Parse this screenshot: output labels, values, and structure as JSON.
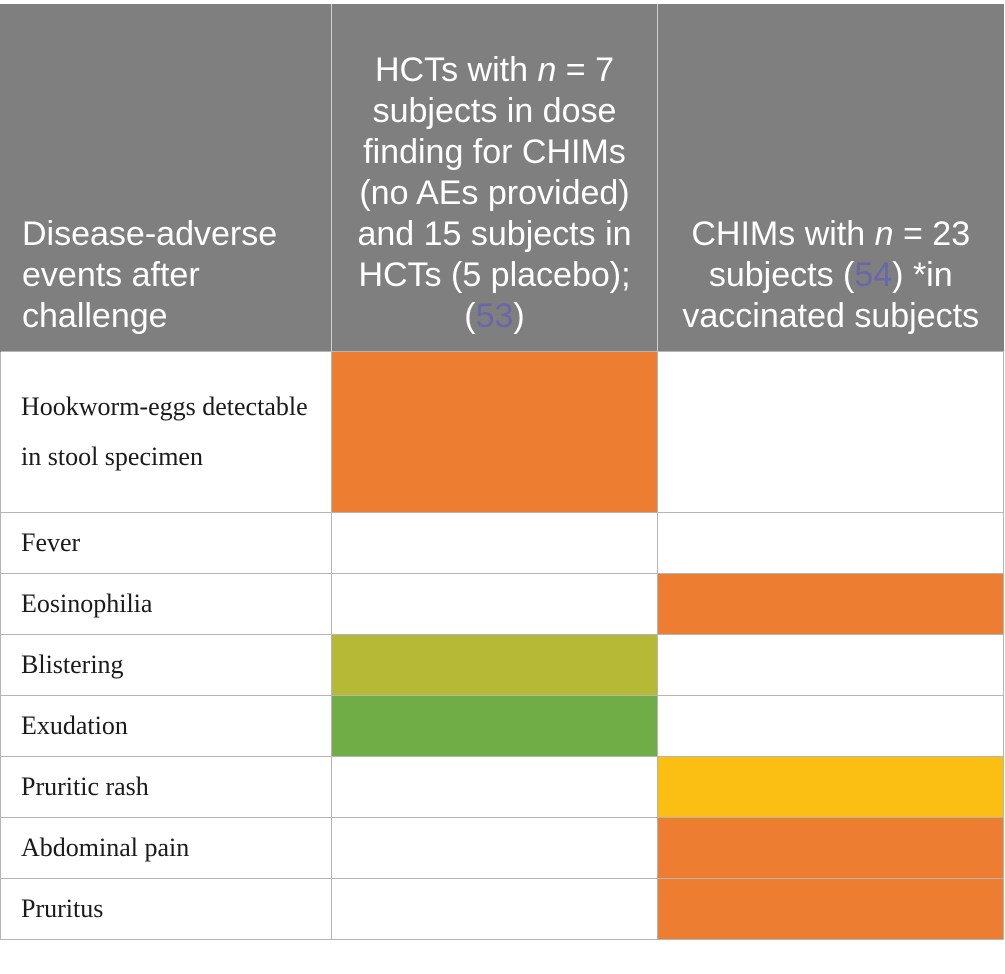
{
  "table": {
    "headers": [
      {
        "text": "Disease-adverse events after challenge"
      },
      {
        "pre": "HCTs with ",
        "italic": "n",
        "mid": " = 7 subjects in dose finding for CHIMs (no AEs provided) and 15 subjects in HCTs (5 placebo); (",
        "ref": "53",
        "post": ")"
      },
      {
        "pre": "CHIMs with ",
        "italic": "n",
        "mid": " = 23 subjects (",
        "ref": "54",
        "post": ") *in vaccinated subjects"
      }
    ],
    "colors": {
      "orange": "#ed7d31",
      "olive": "#b5b935",
      "green": "#70ad47",
      "yellow": "#fbbf14",
      "white": "#ffffff",
      "header_bg": "#7f7f7f"
    },
    "rows": [
      {
        "label": "Hookworm-eggs detectable in stool specimen",
        "col1": "orange",
        "col2": "white"
      },
      {
        "label": "Fever",
        "col1": "white",
        "col2": "white"
      },
      {
        "label": "Eosinophilia",
        "col1": "white",
        "col2": "orange"
      },
      {
        "label": "Blistering",
        "col1": "olive",
        "col2": "white"
      },
      {
        "label": "Exudation",
        "col1": "green",
        "col2": "white"
      },
      {
        "label": "Pruritic rash",
        "col1": "white",
        "col2": "yellow"
      },
      {
        "label": "Abdominal pain",
        "col1": "white",
        "col2": "orange"
      },
      {
        "label": "Pruritus",
        "col1": "white",
        "col2": "orange"
      }
    ]
  }
}
